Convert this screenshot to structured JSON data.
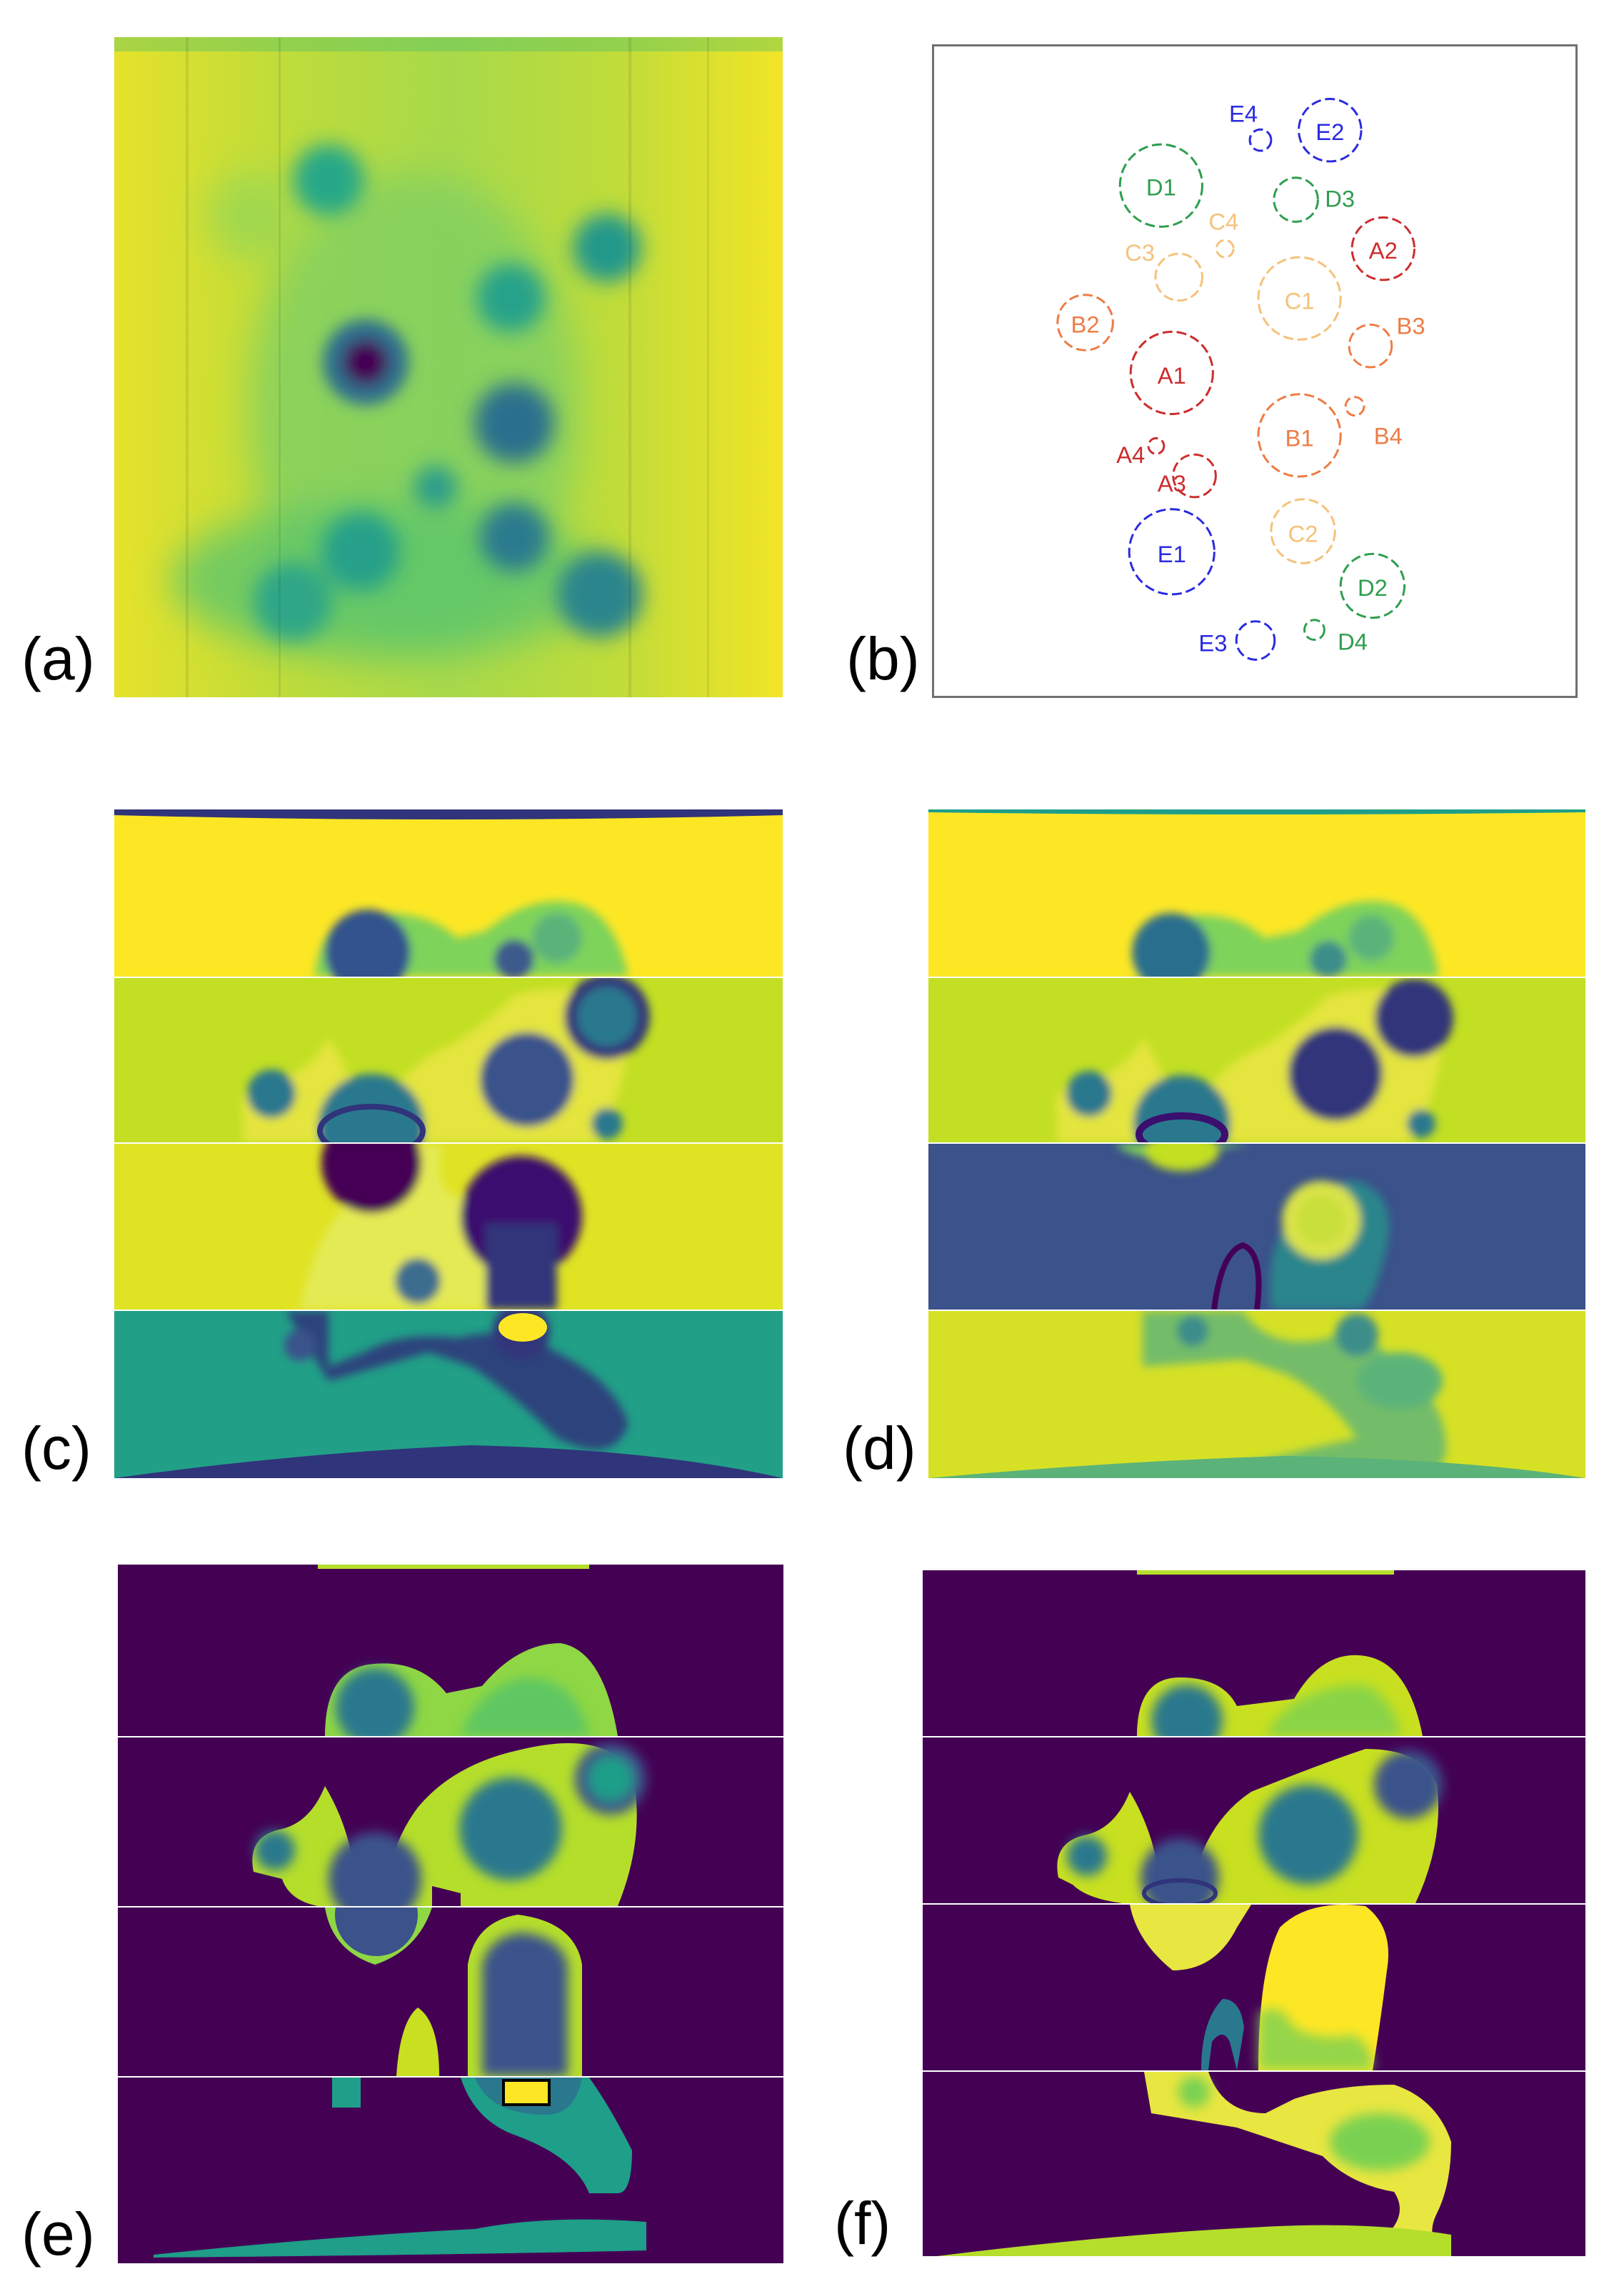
{
  "panels": {
    "a": {
      "label": "(a)"
    },
    "b": {
      "label": "(b)"
    },
    "c": {
      "label": "(c)"
    },
    "d": {
      "label": "(d)"
    },
    "e": {
      "label": "(e)"
    },
    "f": {
      "label": "(f)"
    }
  },
  "colors": {
    "viridis_yellow": "#fde725",
    "viridis_yellowgreen": "#c2df23",
    "viridis_green": "#86d549",
    "viridis_teal": "#1f9e89",
    "viridis_blue": "#3b528b",
    "viridis_darkblue": "#30347a",
    "viridis_purple": "#440154",
    "group_A": "#cc2d2d",
    "group_B": "#ee7c45",
    "group_C": "#f5c27a",
    "group_D": "#2e9e4e",
    "group_E": "#2a2ae0"
  },
  "inclusions": [
    {
      "name": "E4",
      "group": "E"
    },
    {
      "name": "E2",
      "group": "E"
    },
    {
      "name": "D1",
      "group": "D"
    },
    {
      "name": "D3",
      "group": "D"
    },
    {
      "name": "C4",
      "group": "C"
    },
    {
      "name": "A2",
      "group": "A"
    },
    {
      "name": "C3",
      "group": "C"
    },
    {
      "name": "C1",
      "group": "C"
    },
    {
      "name": "B2",
      "group": "B"
    },
    {
      "name": "B3",
      "group": "B"
    },
    {
      "name": "A1",
      "group": "A"
    },
    {
      "name": "B4",
      "group": "B"
    },
    {
      "name": "B1",
      "group": "B"
    },
    {
      "name": "A4",
      "group": "A"
    },
    {
      "name": "A3",
      "group": "A"
    },
    {
      "name": "C2",
      "group": "C"
    },
    {
      "name": "E1",
      "group": "E"
    },
    {
      "name": "D2",
      "group": "D"
    },
    {
      "name": "E3",
      "group": "E"
    },
    {
      "name": "D4",
      "group": "D"
    }
  ]
}
